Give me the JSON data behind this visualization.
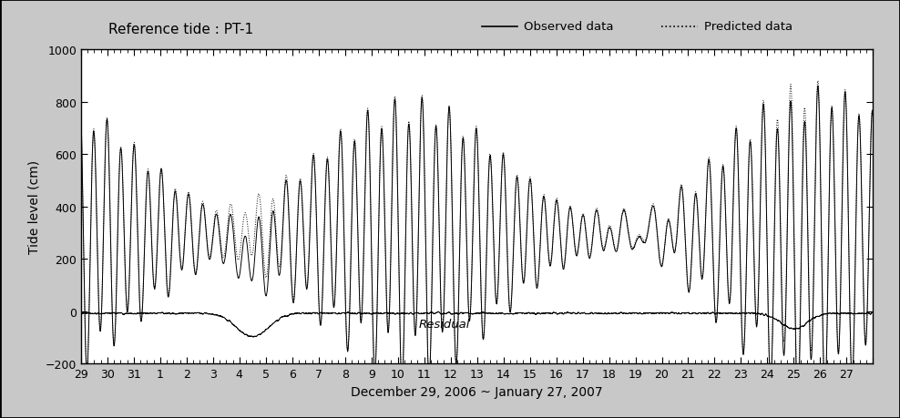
{
  "title_left": "Reference tide : PT-1",
  "legend_observed": "Observed data",
  "legend_predicted": "Predicted data",
  "residual_label": "Residual",
  "ylabel": "Tide level (cm)",
  "xlabel": "December 29, 2006 ~ January 27, 2007",
  "ylim": [
    -200,
    1000
  ],
  "yticks": [
    -200,
    0,
    200,
    400,
    600,
    800,
    1000
  ],
  "xtick_labels": [
    "29",
    "30",
    "31",
    "1",
    "2",
    "3",
    "4",
    "5",
    "6",
    "7",
    "8",
    "9",
    "10",
    "11",
    "12",
    "13",
    "14",
    "15",
    "16",
    "17",
    "18",
    "19",
    "20",
    "21",
    "22",
    "23",
    "24",
    "25",
    "26",
    "27"
  ],
  "n_days": 30,
  "obs_color": "#000000",
  "pred_color": "#000000",
  "residual_color": "#000000",
  "background_color": "#ffffff",
  "fig_bg_color": "#c8c8c8",
  "obs_linewidth": 0.7,
  "pred_linewidth": 0.7,
  "res_linewidth": 0.7,
  "title_fontsize": 11,
  "axis_fontsize": 10,
  "tick_fontsize": 9
}
